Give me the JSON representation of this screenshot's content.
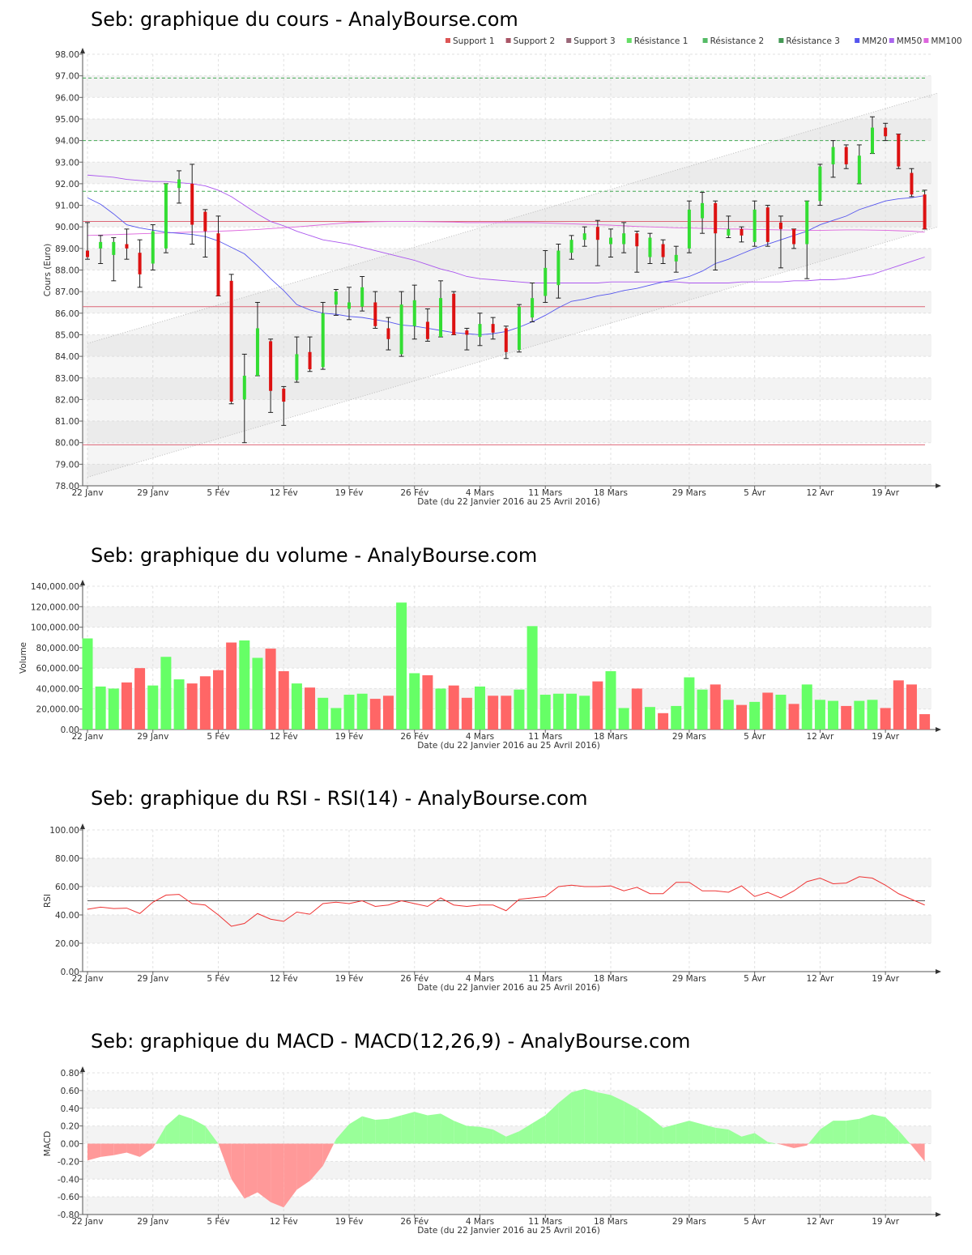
{
  "x_labels": [
    "22 Janv",
    "29 Janv",
    "5 Fév",
    "12 Fév",
    "19 Fév",
    "26 Fév",
    "4 Mars",
    "11 Mars",
    "18 Mars",
    "29 Mars",
    "5 Avr",
    "12 Avr",
    "19 Avr"
  ],
  "date_range": "Date (du 22 Janvier 2016 au 25 Avril 2016)",
  "colors": {
    "up": "#33dd33",
    "down": "#dd1111",
    "vol_up": "#66ff66",
    "vol_down": "#ff6666",
    "rsi": "#ee3333",
    "mm20": "#5555ee",
    "mm50": "#aa55ee",
    "mm100": "#dd66dd",
    "support": "#dd6677",
    "resistance": "#44aa55",
    "macd_pos": "#99ff99",
    "macd_neg": "#ff9999"
  },
  "chart_data": [
    {
      "id": "price",
      "type": "candlestick",
      "title": "Seb: graphique du cours - AnalyBourse.com",
      "ylabel": "Cours (Euro)",
      "ylim": [
        78,
        98
      ],
      "yticks": [
        "98.00",
        "97.00",
        "96.00",
        "95.00",
        "94.00",
        "93.00",
        "92.00",
        "91.00",
        "90.00",
        "89.00",
        "88.00",
        "87.00",
        "86.00",
        "85.00",
        "84.00",
        "83.00",
        "82.00",
        "81.00",
        "80.00",
        "79.00",
        "78.00"
      ],
      "legend": [
        "Support 1",
        "Support 2",
        "Support 3",
        "Résistance 1",
        "Résistance 2",
        "Résistance 3",
        "MM20",
        "MM50",
        "MM100"
      ],
      "supports": [
        86.3,
        90.25,
        79.9
      ],
      "resistances": [
        91.65,
        94.0,
        96.9
      ],
      "channel_upper": [
        [
          0,
          84.6
        ],
        [
          65,
          96.2
        ]
      ],
      "channel_lower": [
        [
          0,
          78.4
        ],
        [
          65,
          90.0
        ]
      ],
      "candles": [
        [
          88.9,
          88.6,
          90.2,
          88.5
        ],
        [
          89.0,
          89.3,
          89.6,
          88.3
        ],
        [
          88.7,
          89.3,
          89.5,
          87.5
        ],
        [
          89.2,
          89.0,
          89.9,
          88.5
        ],
        [
          88.8,
          87.8,
          89.4,
          87.2
        ],
        [
          88.3,
          89.8,
          90.1,
          88.0
        ],
        [
          89.0,
          92.0,
          92.0,
          88.8
        ],
        [
          91.8,
          92.2,
          92.6,
          91.1
        ],
        [
          92.0,
          90.1,
          92.9,
          89.2
        ],
        [
          90.7,
          89.8,
          90.8,
          88.6
        ],
        [
          89.7,
          86.8,
          90.5,
          86.8
        ],
        [
          87.5,
          81.9,
          87.8,
          81.8
        ],
        [
          82.0,
          83.1,
          84.1,
          80.0
        ],
        [
          83.1,
          85.3,
          86.5,
          83.1
        ],
        [
          84.7,
          82.4,
          84.8,
          81.4
        ],
        [
          82.5,
          81.9,
          82.6,
          80.8
        ],
        [
          82.9,
          84.1,
          84.9,
          82.8
        ],
        [
          84.2,
          83.4,
          84.9,
          83.3
        ],
        [
          83.5,
          86.0,
          86.5,
          83.4
        ],
        [
          86.4,
          87.0,
          87.1,
          85.9
        ],
        [
          86.2,
          86.5,
          87.2,
          85.7
        ],
        [
          86.3,
          87.2,
          87.7,
          86.1
        ],
        [
          86.5,
          85.4,
          87.0,
          85.3
        ],
        [
          85.3,
          84.8,
          85.8,
          84.3
        ],
        [
          84.1,
          86.4,
          87.0,
          84.0
        ],
        [
          85.4,
          86.6,
          87.3,
          84.8
        ],
        [
          85.6,
          84.8,
          86.2,
          84.7
        ],
        [
          84.9,
          86.7,
          87.5,
          84.9
        ],
        [
          86.9,
          85.0,
          87.0,
          85.0
        ],
        [
          85.2,
          85.0,
          85.3,
          84.3
        ],
        [
          84.9,
          85.5,
          86.0,
          84.5
        ],
        [
          85.5,
          85.1,
          85.8,
          84.8
        ],
        [
          85.3,
          84.2,
          85.4,
          83.9
        ],
        [
          84.3,
          86.3,
          86.4,
          84.2
        ],
        [
          85.8,
          86.7,
          87.4,
          85.6
        ],
        [
          86.8,
          88.1,
          88.9,
          86.5
        ],
        [
          87.3,
          88.9,
          89.2,
          86.7
        ],
        [
          88.8,
          89.4,
          89.6,
          88.5
        ],
        [
          89.4,
          89.7,
          90.0,
          89.1
        ],
        [
          90.0,
          89.4,
          90.3,
          88.2
        ],
        [
          89.2,
          89.5,
          89.9,
          88.6
        ],
        [
          89.2,
          89.7,
          90.2,
          88.8
        ],
        [
          89.7,
          89.1,
          89.8,
          87.9
        ],
        [
          88.6,
          89.5,
          89.7,
          88.3
        ],
        [
          89.2,
          88.6,
          89.4,
          88.3
        ],
        [
          88.4,
          88.7,
          89.1,
          87.9
        ],
        [
          89.0,
          90.8,
          91.2,
          88.8
        ],
        [
          90.4,
          91.1,
          91.6,
          89.7
        ],
        [
          91.1,
          89.7,
          91.2,
          88.0
        ],
        [
          89.6,
          89.9,
          90.5,
          89.5
        ],
        [
          89.9,
          89.6,
          90.0,
          89.3
        ],
        [
          89.3,
          90.8,
          91.2,
          89.1
        ],
        [
          90.9,
          89.3,
          91.0,
          89.1
        ],
        [
          90.2,
          89.9,
          90.5,
          88.1
        ],
        [
          89.9,
          89.2,
          89.9,
          89.0
        ],
        [
          89.2,
          91.2,
          91.2,
          87.6
        ],
        [
          91.2,
          92.8,
          92.9,
          91.0
        ],
        [
          92.9,
          93.7,
          94.0,
          92.3
        ],
        [
          93.7,
          92.9,
          93.8,
          92.7
        ],
        [
          92.0,
          93.3,
          93.8,
          92.0
        ],
        [
          93.4,
          94.6,
          95.1,
          93.4
        ],
        [
          94.6,
          94.2,
          94.8,
          94.0
        ],
        [
          94.3,
          92.8,
          94.3,
          92.7
        ],
        [
          92.5,
          91.5,
          92.7,
          91.4
        ],
        [
          91.5,
          89.9,
          91.7,
          89.9
        ]
      ],
      "mm20": [
        91.35,
        91.05,
        90.6,
        90.1,
        89.95,
        89.85,
        89.75,
        89.7,
        89.65,
        89.55,
        89.35,
        89.05,
        88.75,
        88.2,
        87.6,
        87.05,
        86.4,
        86.15,
        86.0,
        85.95,
        85.85,
        85.8,
        85.7,
        85.6,
        85.45,
        85.4,
        85.3,
        85.2,
        85.1,
        85.05,
        85.0,
        85.05,
        85.15,
        85.35,
        85.6,
        85.9,
        86.25,
        86.55,
        86.65,
        86.8,
        86.9,
        87.05,
        87.15,
        87.3,
        87.45,
        87.55,
        87.7,
        87.95,
        88.3,
        88.5,
        88.75,
        89.0,
        89.2,
        89.4,
        89.6,
        89.8,
        90.1,
        90.3,
        90.5,
        90.8,
        91.0,
        91.2,
        91.3,
        91.35,
        91.45
      ],
      "mm50": [
        92.4,
        92.35,
        92.3,
        92.2,
        92.15,
        92.1,
        92.1,
        92.05,
        92.0,
        91.9,
        91.7,
        91.4,
        91.0,
        90.6,
        90.25,
        90.05,
        89.8,
        89.6,
        89.4,
        89.3,
        89.2,
        89.05,
        88.9,
        88.75,
        88.6,
        88.45,
        88.25,
        88.05,
        87.9,
        87.7,
        87.6,
        87.55,
        87.5,
        87.45,
        87.4,
        87.4,
        87.4,
        87.4,
        87.4,
        87.4,
        87.45,
        87.45,
        87.45,
        87.45,
        87.45,
        87.45,
        87.4,
        87.4,
        87.4,
        87.4,
        87.45,
        87.45,
        87.45,
        87.45,
        87.5,
        87.5,
        87.55,
        87.55,
        87.6,
        87.7,
        87.8,
        88.0,
        88.2,
        88.4,
        88.6
      ],
      "mm100": [
        89.6,
        89.62,
        89.64,
        89.66,
        89.68,
        89.7,
        89.72,
        89.74,
        89.76,
        89.78,
        89.8,
        89.82,
        89.85,
        89.88,
        89.92,
        89.96,
        90.0,
        90.05,
        90.1,
        90.15,
        90.2,
        90.22,
        90.24,
        90.25,
        90.25,
        90.25,
        90.24,
        90.23,
        90.22,
        90.2,
        90.2,
        90.2,
        90.2,
        90.2,
        90.2,
        90.18,
        90.16,
        90.14,
        90.12,
        90.1,
        90.08,
        90.05,
        90.02,
        90.0,
        89.98,
        89.96,
        89.95,
        89.93,
        89.92,
        89.9,
        89.9,
        89.88,
        89.87,
        89.86,
        89.85,
        89.84,
        89.84,
        89.85,
        89.86,
        89.86,
        89.85,
        89.84,
        89.82,
        89.8,
        89.75
      ]
    },
    {
      "id": "volume",
      "type": "bar",
      "title": "Seb: graphique du volume - AnalyBourse.com",
      "ylabel": "Volume",
      "ylim": [
        0,
        140000
      ],
      "yticks": [
        "140,000.00",
        "120,000.00",
        "100,000.00",
        "80,000.00",
        "60,000.00",
        "40,000.00",
        "20,000.00",
        "0.00"
      ],
      "values": [
        89000,
        42000,
        40000,
        46000,
        60000,
        43000,
        71000,
        49000,
        45000,
        52000,
        58000,
        85000,
        87000,
        70000,
        79000,
        57000,
        45000,
        41000,
        31000,
        21000,
        34000,
        35000,
        30000,
        33000,
        124000,
        55000,
        53000,
        40000,
        43000,
        31000,
        42000,
        33000,
        33000,
        39000,
        101000,
        34000,
        35000,
        35000,
        33000,
        47000,
        57000,
        21000,
        40000,
        22000,
        16000,
        23000,
        51000,
        39000,
        44000,
        29000,
        24000,
        27000,
        36000,
        34000,
        25000,
        44000,
        29000,
        28000,
        23000,
        28000,
        29000,
        21000,
        48000,
        44000,
        15000
      ],
      "up": [
        1,
        1,
        1,
        0,
        0,
        1,
        1,
        1,
        0,
        0,
        0,
        0,
        1,
        1,
        0,
        0,
        1,
        0,
        1,
        1,
        1,
        1,
        0,
        0,
        1,
        1,
        0,
        1,
        0,
        0,
        1,
        0,
        0,
        1,
        1,
        1,
        1,
        1,
        1,
        0,
        1,
        1,
        0,
        1,
        0,
        1,
        1,
        1,
        0,
        1,
        0,
        1,
        0,
        1,
        0,
        1,
        1,
        1,
        0,
        1,
        1,
        0,
        0,
        0,
        0
      ]
    },
    {
      "id": "rsi",
      "type": "line",
      "title": "Seb: graphique du RSI - RSI(14) - AnalyBourse.com",
      "ylabel": "RSI",
      "ylim": [
        0,
        100
      ],
      "yticks": [
        "100.00",
        "80.00",
        "60.00",
        "40.00",
        "20.00",
        "0.00"
      ],
      "reference": 50,
      "values": [
        44,
        45.5,
        44.5,
        44.8,
        41,
        49,
        54,
        54.5,
        48,
        47,
        40,
        32,
        34,
        41,
        37,
        35.5,
        42,
        40.5,
        48,
        49,
        48,
        50,
        46,
        47,
        50,
        48,
        46,
        52,
        47,
        46,
        47,
        47,
        43,
        51,
        52,
        53,
        60,
        61,
        60,
        60,
        60.5,
        57,
        59.5,
        55,
        55,
        63,
        63,
        57,
        57,
        56,
        60.5,
        53,
        56,
        52,
        57,
        63.5,
        66,
        62,
        62.5,
        67,
        66,
        61,
        55,
        51,
        47
      ]
    },
    {
      "id": "macd",
      "type": "area",
      "title": "Seb: graphique du MACD - MACD(12,26,9) - AnalyBourse.com",
      "ylabel": "MACD",
      "ylim": [
        -0.8,
        0.8
      ],
      "yticks": [
        "0.80",
        "0.60",
        "0.40",
        "0.20",
        "0.00",
        "-0.20",
        "-0.40",
        "-0.60",
        "-0.80"
      ],
      "values": [
        -0.19,
        -0.15,
        -0.13,
        -0.1,
        -0.15,
        -0.05,
        0.2,
        0.33,
        0.28,
        0.2,
        0.0,
        -0.4,
        -0.62,
        -0.55,
        -0.66,
        -0.72,
        -0.52,
        -0.42,
        -0.25,
        0.05,
        0.22,
        0.31,
        0.27,
        0.28,
        0.32,
        0.36,
        0.32,
        0.34,
        0.26,
        0.2,
        0.19,
        0.16,
        0.08,
        0.14,
        0.23,
        0.32,
        0.46,
        0.58,
        0.62,
        0.58,
        0.55,
        0.48,
        0.4,
        0.3,
        0.18,
        0.22,
        0.26,
        0.22,
        0.18,
        0.16,
        0.08,
        0.12,
        0.02,
        -0.01,
        -0.05,
        -0.02,
        0.16,
        0.26,
        0.26,
        0.28,
        0.33,
        0.3,
        0.15,
        -0.02,
        -0.2
      ]
    }
  ]
}
